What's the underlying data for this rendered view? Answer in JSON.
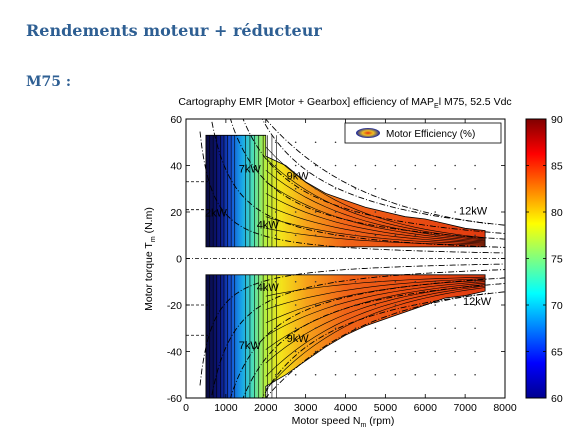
{
  "document": {
    "heading": "Rendements moteur + réducteur",
    "subheading": "M75 :"
  },
  "chart_data": {
    "type": "heatmap",
    "title_main": "Cartography EMR [Motor + Gearbox] efficiency of MAP",
    "title_sub": "E",
    "title_tail": "l M75, 52.5 Vdc",
    "xlabel_main": "Motor speed N",
    "xlabel_sub": "m",
    "xlabel_tail": " (rpm)",
    "ylabel_main": "Motor torque T",
    "ylabel_sub": "m",
    "ylabel_tail": " (N.m)",
    "xlim": [
      0,
      8000
    ],
    "ylim": [
      -60,
      60
    ],
    "xticks": [
      "0",
      "1000",
      "2000",
      "3000",
      "4000",
      "5000",
      "6000",
      "7000",
      "8000"
    ],
    "yticks": [
      "60",
      "40",
      "20",
      "0",
      "-20",
      "-40",
      "-60"
    ],
    "legend": {
      "label": "Motor Efficiency (%)",
      "position": "top-right"
    },
    "colorbar": {
      "range": [
        60,
        90
      ],
      "ticks": [
        "90",
        "85",
        "80",
        "75",
        "70",
        "65",
        "60"
      ]
    },
    "power_labels": [
      {
        "text": "2kW",
        "x": 750,
        "y": 18
      },
      {
        "text": "4kW",
        "x": 2050,
        "y": 13
      },
      {
        "text": "7kW",
        "x": 1600,
        "y": 37
      },
      {
        "text": "9kW",
        "x": 2800,
        "y": 34
      },
      {
        "text": "12kW",
        "x": 7200,
        "y": 19
      },
      {
        "text": "4kW",
        "x": 2050,
        "y": -14
      },
      {
        "text": "7kW",
        "x": 1600,
        "y": -39
      },
      {
        "text": "9kW",
        "x": 2800,
        "y": -36
      },
      {
        "text": "12kW",
        "x": 7300,
        "y": -20
      }
    ],
    "upper_region": {
      "speed_rpm": [
        500,
        2000,
        2000,
        2500,
        3000,
        3500,
        4000,
        4500,
        5000,
        5500,
        6000,
        6500,
        7000,
        7500,
        7500,
        500
      ],
      "torque_nm": [
        53,
        53,
        44,
        40,
        33,
        28,
        25,
        22,
        20,
        18,
        17,
        15,
        13,
        12,
        5,
        5
      ]
    },
    "lower_region": {
      "speed_rpm": [
        500,
        7500,
        7500,
        7000,
        6500,
        6000,
        5500,
        5000,
        4500,
        4000,
        3500,
        3000,
        2500,
        2000,
        2000,
        500
      ],
      "torque_nm": [
        -7,
        -7,
        -14,
        -16,
        -17,
        -20,
        -23,
        -26,
        -29,
        -33,
        -38,
        -44,
        -50,
        -55,
        -60,
        -60
      ]
    }
  }
}
